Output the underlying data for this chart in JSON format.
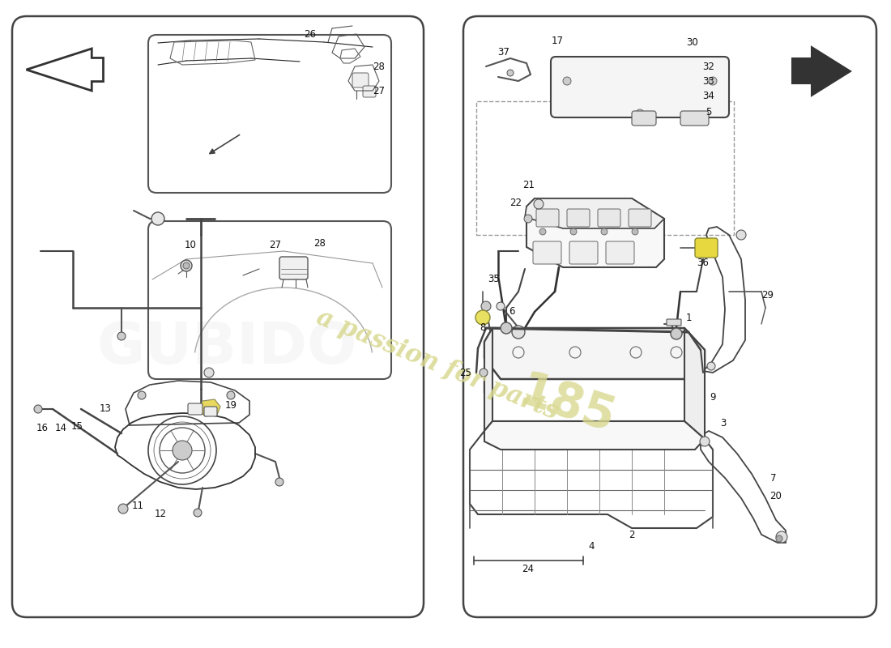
{
  "bg_color": "#ffffff",
  "line_color": "#222222",
  "label_color": "#111111",
  "watermark_text": "a passion for parts",
  "watermark_color": "#d8d890",
  "watermark2_text": "185",
  "figsize": [
    11.0,
    8.0
  ],
  "dpi": 100,
  "lw_main": 1.3,
  "lw_border": 1.8,
  "lw_thin": 0.8,
  "font_label": 8.5
}
